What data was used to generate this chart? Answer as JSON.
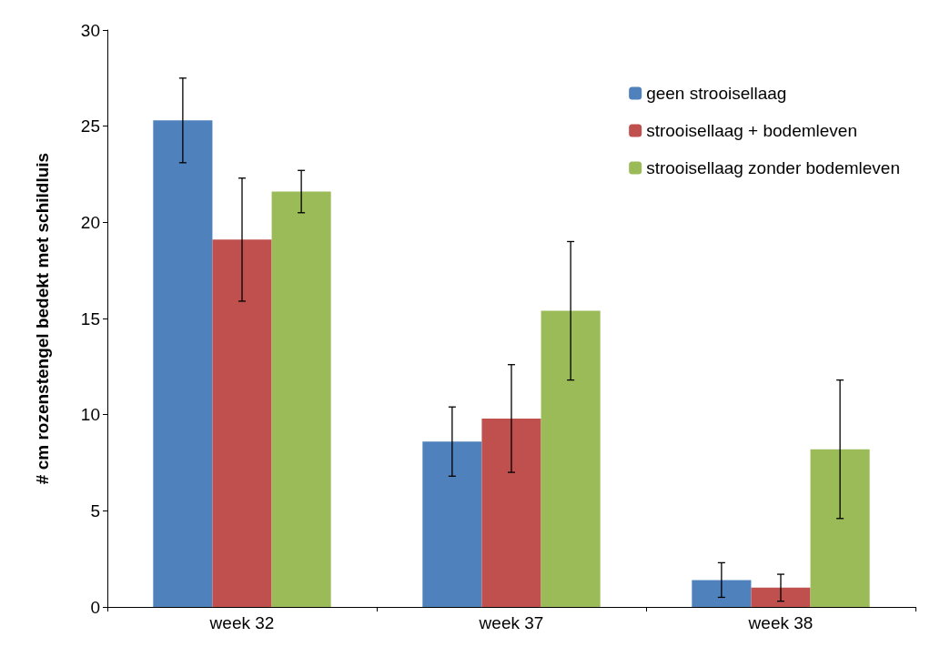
{
  "chart_data": {
    "type": "bar",
    "ylabel": "# cm rozenstengel bedekt met schildluis",
    "categories": [
      "week 32",
      "week 37",
      "week 38"
    ],
    "series": [
      {
        "name": "geen strooisellaag",
        "color": "#4f81bd",
        "values": [
          25.3,
          8.6,
          1.4
        ],
        "errors": [
          2.2,
          1.8,
          0.9
        ]
      },
      {
        "name": "strooisellaag + bodemleven",
        "color": "#c0504d",
        "values": [
          19.1,
          9.8,
          1.0
        ],
        "errors": [
          3.2,
          2.8,
          0.7
        ]
      },
      {
        "name": "strooisellaag zonder bodemleven",
        "color": "#9bbb59",
        "values": [
          21.6,
          15.4,
          8.2
        ],
        "errors": [
          1.1,
          3.6,
          3.6
        ]
      }
    ],
    "ylim": [
      0,
      30
    ],
    "yticks": [
      0,
      5,
      10,
      15,
      20,
      25,
      30
    ],
    "grid": false,
    "legend": "top right"
  }
}
